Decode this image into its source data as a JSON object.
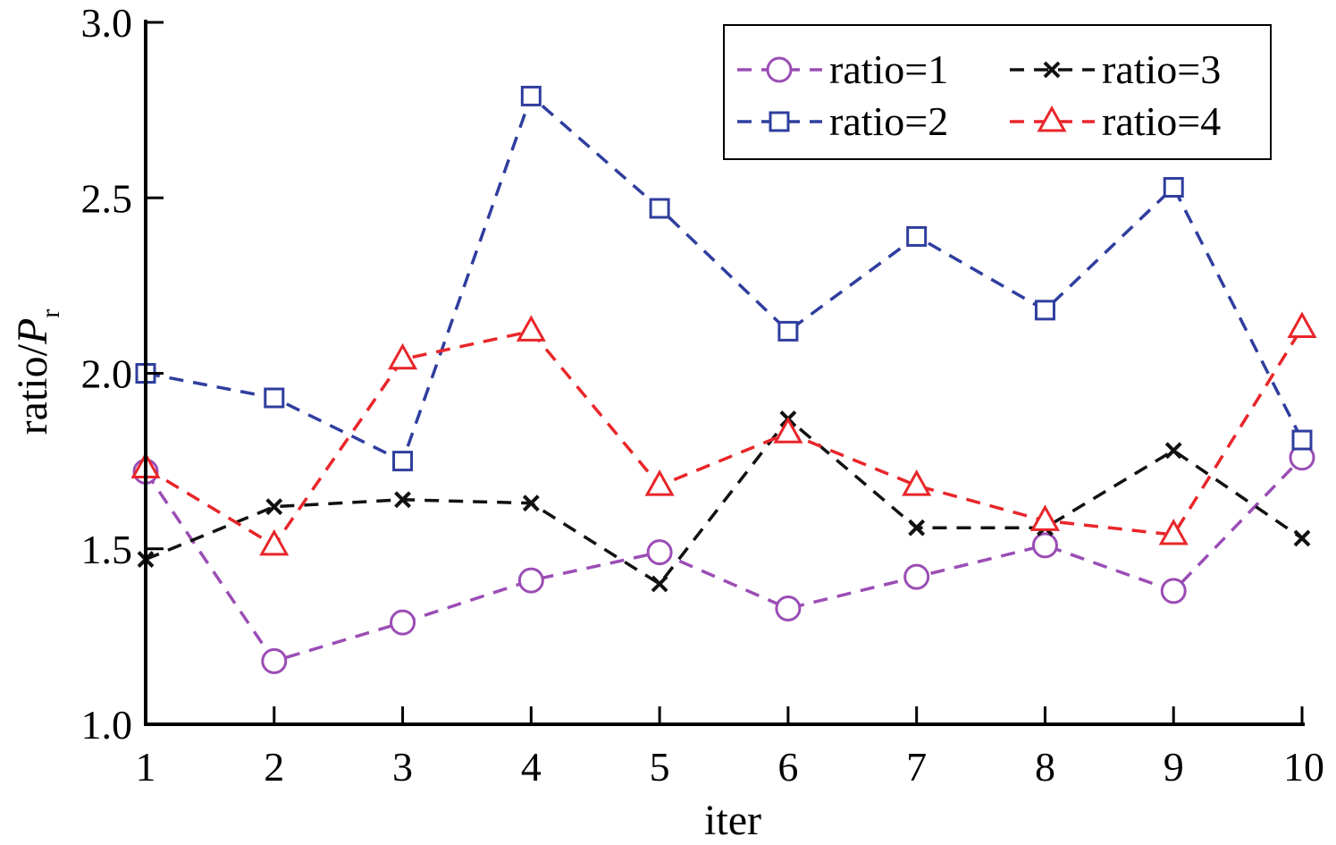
{
  "chart_data": {
    "type": "line",
    "x": [
      1,
      2,
      3,
      4,
      5,
      6,
      7,
      8,
      9,
      10
    ],
    "xlabel": "iter",
    "ylabel": "ratio/",
    "ylabel_symbol": "P",
    "ylabel_subscript": "r",
    "xlim": [
      1,
      10
    ],
    "ylim": [
      1.0,
      3.0
    ],
    "xticks": [
      "1",
      "2",
      "3",
      "4",
      "5",
      "6",
      "7",
      "8",
      "9",
      "10"
    ],
    "yticks": [
      "1.0",
      "1.5",
      "2.0",
      "2.5",
      "3.0"
    ],
    "grid": false,
    "legend_position": "top-right",
    "series": [
      {
        "name": "ratio=1",
        "marker": "circle",
        "color": "#9b4db5",
        "values": [
          1.72,
          1.18,
          1.29,
          1.41,
          1.49,
          1.33,
          1.42,
          1.51,
          1.38,
          1.76
        ]
      },
      {
        "name": "ratio=2",
        "marker": "square",
        "color": "#2f3e9e",
        "values": [
          2.0,
          1.93,
          1.75,
          2.79,
          2.47,
          2.12,
          2.39,
          2.18,
          2.53,
          1.81
        ]
      },
      {
        "name": "ratio=3",
        "marker": "x",
        "color": "#111111",
        "values": [
          1.47,
          1.62,
          1.64,
          1.63,
          1.4,
          1.87,
          1.56,
          1.56,
          1.78,
          1.53
        ]
      },
      {
        "name": "ratio=4",
        "marker": "triangle",
        "color": "#e8262a",
        "values": [
          1.73,
          1.51,
          2.04,
          2.12,
          1.68,
          1.83,
          1.68,
          1.58,
          1.54,
          2.13
        ]
      }
    ]
  }
}
